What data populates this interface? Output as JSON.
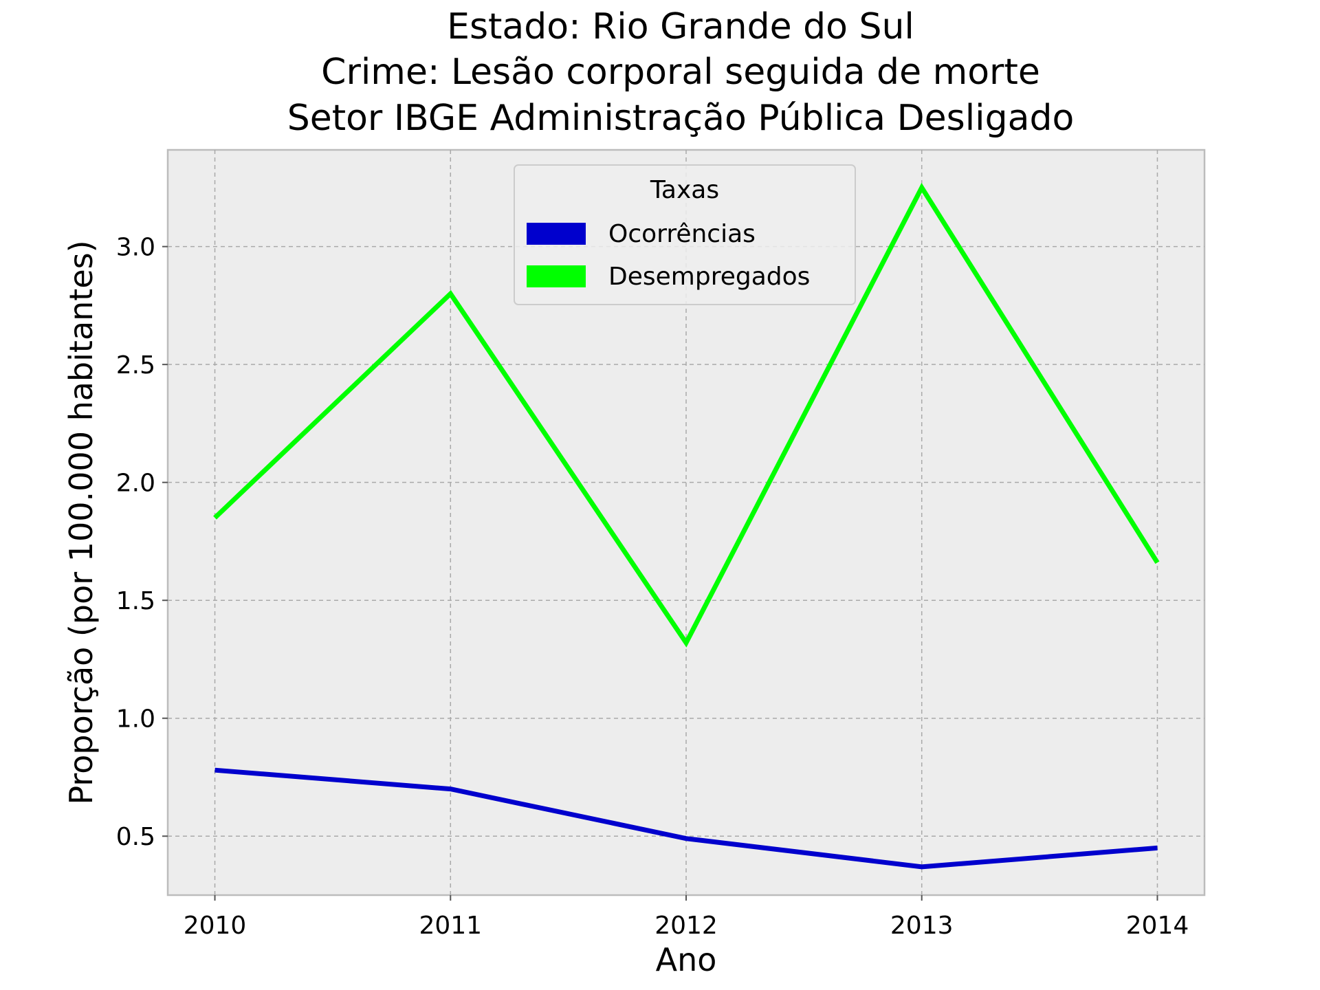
{
  "chart_data": {
    "type": "line",
    "title_lines": [
      "Estado: Rio Grande do Sul",
      "Crime: Lesão corporal seguida de morte",
      "Setor IBGE  Administração Pública   Desligado"
    ],
    "xlabel": "Ano",
    "ylabel": "Proporção (por 100.000 habitantes)",
    "categories": [
      "2010",
      "2011",
      "2012",
      "2013",
      "2014"
    ],
    "x": [
      2010,
      2011,
      2012,
      2013,
      2014
    ],
    "xlim": [
      2009.8,
      2014.2
    ],
    "ylim": [
      0.25,
      3.41
    ],
    "yticks": [
      0.5,
      1.0,
      1.5,
      2.0,
      2.5,
      3.0
    ],
    "ytick_labels": [
      "0.5",
      "1.0",
      "1.5",
      "2.0",
      "2.5",
      "3.0"
    ],
    "grid": true,
    "legend": {
      "title": "Taxas",
      "placement": "upper center"
    },
    "series": [
      {
        "name": "Ocorrências",
        "color": "#0000cd",
        "values": [
          0.78,
          0.7,
          0.49,
          0.37,
          0.45
        ]
      },
      {
        "name": "Desempregados",
        "color": "#00ff00",
        "values": [
          1.85,
          2.8,
          1.32,
          3.25,
          1.66
        ]
      }
    ],
    "colors": {
      "plot_background": "#ededed",
      "spine": "#bcbcbc",
      "grid": "#a9a9a9"
    }
  }
}
